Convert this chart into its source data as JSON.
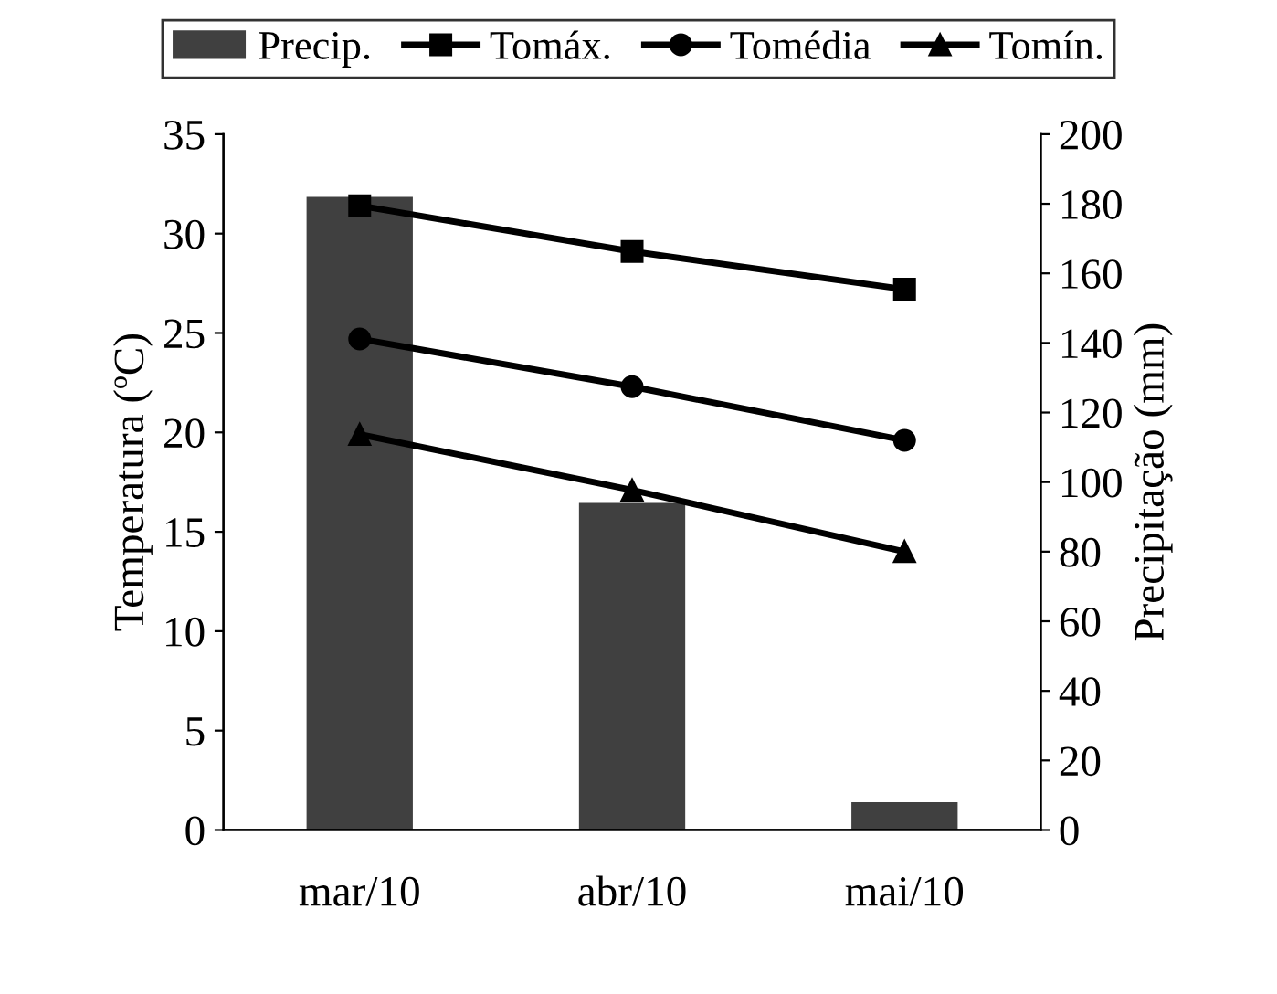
{
  "chart_data": {
    "type": "bar",
    "categories": [
      "mar/10",
      "abr/10",
      "mai/10"
    ],
    "ylabel": "Temperatura (ºC)",
    "y2label": "Precipitação (mm)",
    "ylim": [
      0,
      35
    ],
    "yticks": [
      0,
      5,
      10,
      15,
      20,
      25,
      30,
      35
    ],
    "y2lim": [
      0,
      200
    ],
    "y2ticks": [
      0,
      20,
      40,
      60,
      80,
      100,
      120,
      140,
      160,
      180,
      200
    ],
    "grid": false,
    "legend": "top",
    "series": [
      {
        "name": "Precip.",
        "axis": "y2",
        "color": "#404040",
        "values": [
          182,
          94,
          8
        ]
      },
      {
        "name": "Tomáx.",
        "type": "line",
        "marker": "square",
        "color": "#000000",
        "values": [
          31.4,
          29.1,
          27.2
        ]
      },
      {
        "name": "Tomédia",
        "type": "line",
        "marker": "circle",
        "color": "#000000",
        "values": [
          24.7,
          22.3,
          19.6
        ]
      },
      {
        "name": "Tomín.",
        "type": "line",
        "marker": "triangle",
        "color": "#000000",
        "values": [
          19.9,
          17.1,
          14.0
        ]
      }
    ]
  }
}
